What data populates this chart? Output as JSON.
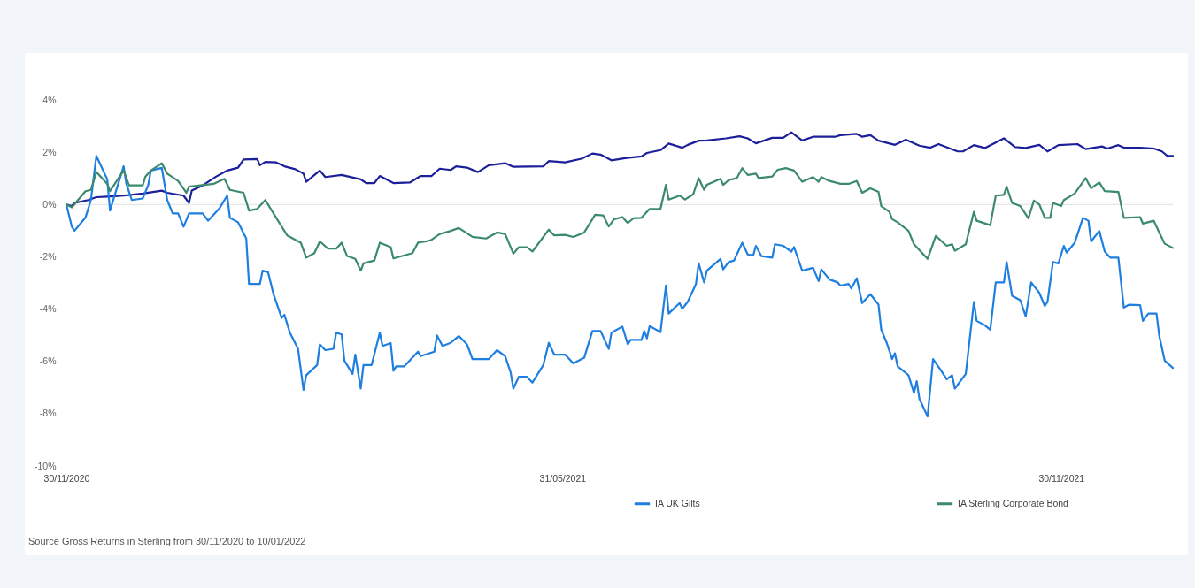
{
  "chart_data": {
    "type": "line",
    "xlim": [
      "2020-11-30",
      "2022-01-10"
    ],
    "xticks": [
      {
        "value": "2020-11-30",
        "label": "30/11/2020"
      },
      {
        "value": "2021-05-31",
        "label": "31/05/2021"
      },
      {
        "value": "2021-11-30",
        "label": "30/11/2021"
      }
    ],
    "ylim": [
      -10,
      4
    ],
    "yticks": [
      {
        "value": -10,
        "label": "-10%"
      },
      {
        "value": -8,
        "label": "-8%"
      },
      {
        "value": -6,
        "label": "-6%"
      },
      {
        "value": -4,
        "label": "-4%"
      },
      {
        "value": -2,
        "label": "-2%"
      },
      {
        "value": 0,
        "label": "0%"
      },
      {
        "value": 2,
        "label": "2%"
      },
      {
        "value": 4,
        "label": "4%"
      }
    ],
    "grid": false,
    "legend": "bottom",
    "ref_lines": [
      {
        "axis": "y",
        "value": 0,
        "color": "#e6e6e6"
      }
    ],
    "annotations": [
      "Source Gross Returns in Sterling from 30/11/2020 to 10/01/2022"
    ],
    "series": [
      {
        "color": "#1c1f9a",
        "x": [
          "2020-11-30",
          "2020-12-02",
          "2020-12-03",
          "2020-12-08",
          "2020-12-11",
          "2020-12-15",
          "2020-12-21",
          "2020-12-28",
          "2021-01-04",
          "2021-01-06",
          "2021-01-12",
          "2021-01-14",
          "2021-01-15",
          "2021-01-19",
          "2021-01-24",
          "2021-01-28",
          "2021-02-01",
          "2021-02-03",
          "2021-02-08",
          "2021-02-09",
          "2021-02-11",
          "2021-02-15",
          "2021-02-18",
          "2021-02-22",
          "2021-02-25",
          "2021-02-26",
          "2021-03-03",
          "2021-03-05",
          "2021-03-11",
          "2021-03-18",
          "2021-03-20",
          "2021-03-23",
          "2021-03-25",
          "2021-03-30",
          "2021-04-05",
          "2021-04-09",
          "2021-04-13",
          "2021-04-16",
          "2021-04-20",
          "2021-04-22",
          "2021-04-26",
          "2021-04-30",
          "2021-05-04",
          "2021-05-10",
          "2021-05-13",
          "2021-05-24",
          "2021-05-26",
          "2021-06-01",
          "2021-06-07",
          "2021-06-11",
          "2021-06-14",
          "2021-06-18",
          "2021-06-23",
          "2021-06-29",
          "2021-07-01",
          "2021-07-06",
          "2021-07-09",
          "2021-07-14",
          "2021-07-16",
          "2021-07-20",
          "2021-07-23",
          "2021-07-30",
          "2021-08-04",
          "2021-08-07",
          "2021-08-10",
          "2021-08-16",
          "2021-08-20",
          "2021-08-23",
          "2021-08-27",
          "2021-08-31",
          "2021-09-08",
          "2021-09-10",
          "2021-09-16",
          "2021-09-18",
          "2021-09-21",
          "2021-09-24",
          "2021-09-30",
          "2021-10-04",
          "2021-10-09",
          "2021-10-13",
          "2021-10-16",
          "2021-10-23",
          "2021-10-25",
          "2021-10-29",
          "2021-11-02",
          "2021-11-09",
          "2021-11-13",
          "2021-11-17",
          "2021-11-22",
          "2021-11-25",
          "2021-11-29",
          "2021-12-06",
          "2021-12-09",
          "2021-12-15",
          "2021-12-17",
          "2021-12-21",
          "2021-12-23",
          "2021-12-29",
          "2022-01-03",
          "2022-01-06",
          "2022-01-08",
          "2022-01-10"
        ],
        "values": [
          0,
          -0.06,
          0.06,
          0.17,
          0.28,
          0.3,
          0.34,
          0.42,
          0.53,
          0.45,
          0.34,
          0.06,
          0.53,
          0.73,
          1.07,
          1.3,
          1.41,
          1.72,
          1.74,
          1.5,
          1.63,
          1.61,
          1.46,
          1.35,
          1.18,
          0.87,
          1.3,
          1.05,
          1.13,
          0.96,
          0.82,
          0.82,
          1.09,
          0.82,
          0.84,
          1.09,
          1.09,
          1.37,
          1.32,
          1.46,
          1.41,
          1.24,
          1.5,
          1.58,
          1.44,
          1.46,
          1.66,
          1.61,
          1.75,
          1.95,
          1.91,
          1.69,
          1.77,
          1.84,
          1.97,
          2.08,
          2.33,
          2.17,
          2.28,
          2.44,
          2.45,
          2.53,
          2.61,
          2.53,
          2.34,
          2.55,
          2.55,
          2.76,
          2.45,
          2.59,
          2.59,
          2.65,
          2.7,
          2.59,
          2.65,
          2.44,
          2.28,
          2.48,
          2.25,
          2.17,
          2.31,
          2.03,
          2.03,
          2.27,
          2.16,
          2.53,
          2.2,
          2.16,
          2.28,
          2.03,
          2.27,
          2.31,
          2.12,
          2.22,
          2.14,
          2.27,
          2.17,
          2.17,
          2.14,
          2.03,
          1.86,
          1.86
        ]
      },
      {
        "name": "IA UK Gilts",
        "color": "#1f7fe0",
        "x": [
          "2020-11-30",
          "2020-12-02",
          "2020-12-03",
          "2020-12-07",
          "2020-12-09",
          "2020-12-11",
          "2020-12-15",
          "2020-12-16",
          "2020-12-21",
          "2020-12-22",
          "2020-12-24",
          "2020-12-28",
          "2020-12-30",
          "2020-12-31",
          "2021-01-04",
          "2021-01-06",
          "2021-01-08",
          "2021-01-10",
          "2021-01-12",
          "2021-01-14",
          "2021-01-19",
          "2021-01-21",
          "2021-01-25",
          "2021-01-28",
          "2021-01-29",
          "2021-02-01",
          "2021-02-04",
          "2021-02-05",
          "2021-02-09",
          "2021-02-10",
          "2021-02-12",
          "2021-02-14",
          "2021-02-17",
          "2021-02-18",
          "2021-02-20",
          "2021-02-23",
          "2021-02-25",
          "2021-02-26",
          "2021-03-02",
          "2021-03-03",
          "2021-03-05",
          "2021-03-08",
          "2021-03-09",
          "2021-03-11",
          "2021-03-12",
          "2021-03-15",
          "2021-03-16",
          "2021-03-18",
          "2021-03-19",
          "2021-03-22",
          "2021-03-25",
          "2021-03-26",
          "2021-03-29",
          "2021-03-30",
          "2021-03-31",
          "2021-04-03",
          "2021-04-08",
          "2021-04-09",
          "2021-04-14",
          "2021-04-15",
          "2021-04-17",
          "2021-04-20",
          "2021-04-23",
          "2021-04-26",
          "2021-04-28",
          "2021-05-04",
          "2021-05-07",
          "2021-05-10",
          "2021-05-12",
          "2021-05-13",
          "2021-05-15",
          "2021-05-18",
          "2021-05-20",
          "2021-05-24",
          "2021-05-26",
          "2021-05-28",
          "2021-06-01",
          "2021-06-04",
          "2021-06-08",
          "2021-06-11",
          "2021-06-14",
          "2021-06-17",
          "2021-06-18",
          "2021-06-22",
          "2021-06-24",
          "2021-06-25",
          "2021-06-29",
          "2021-06-30",
          "2021-07-01",
          "2021-07-02",
          "2021-07-06",
          "2021-07-08",
          "2021-07-09",
          "2021-07-13",
          "2021-07-14",
          "2021-07-16",
          "2021-07-19",
          "2021-07-20",
          "2021-07-22",
          "2021-07-23",
          "2021-07-28",
          "2021-07-29",
          "2021-07-31",
          "2021-08-02",
          "2021-08-05",
          "2021-08-07",
          "2021-08-09",
          "2021-08-10",
          "2021-08-12",
          "2021-08-16",
          "2021-08-17",
          "2021-08-20",
          "2021-08-23",
          "2021-08-24",
          "2021-08-27",
          "2021-08-31",
          "2021-09-02",
          "2021-09-03",
          "2021-09-06",
          "2021-09-09",
          "2021-09-10",
          "2021-09-13",
          "2021-09-14",
          "2021-09-16",
          "2021-09-18",
          "2021-09-21",
          "2021-09-24",
          "2021-09-25",
          "2021-09-27",
          "2021-09-29",
          "2021-09-30",
          "2021-10-01",
          "2021-10-05",
          "2021-10-07",
          "2021-10-08",
          "2021-10-09",
          "2021-10-12",
          "2021-10-14",
          "2021-10-17",
          "2021-10-19",
          "2021-10-21",
          "2021-10-22",
          "2021-10-26",
          "2021-10-29",
          "2021-10-30",
          "2021-11-02",
          "2021-11-04",
          "2021-11-06",
          "2021-11-09",
          "2021-11-10",
          "2021-11-12",
          "2021-11-15",
          "2021-11-17",
          "2021-11-19",
          "2021-11-22",
          "2021-11-24",
          "2021-11-25",
          "2021-11-27",
          "2021-11-29",
          "2021-12-01",
          "2021-12-02",
          "2021-12-05",
          "2021-12-08",
          "2021-12-10",
          "2021-12-11",
          "2021-12-14",
          "2021-12-16",
          "2021-12-18",
          "2021-12-21",
          "2021-12-23",
          "2021-12-25",
          "2021-12-29",
          "2021-12-30",
          "2022-01-01",
          "2022-01-04",
          "2022-01-05",
          "2022-01-07",
          "2022-01-10"
        ],
        "values": [
          0,
          -0.85,
          -1.0,
          -0.5,
          0.17,
          1.86,
          0.96,
          -0.23,
          1.46,
          0.79,
          0.17,
          0.23,
          0.73,
          1.3,
          1.4,
          0.17,
          -0.34,
          -0.34,
          -0.85,
          -0.34,
          -0.34,
          -0.62,
          -0.17,
          0.34,
          -0.51,
          -0.68,
          -1.3,
          -3.04,
          -3.04,
          -2.53,
          -2.59,
          -3.43,
          -4.34,
          -4.22,
          -4.9,
          -5.52,
          -7.09,
          -6.53,
          -6.14,
          -5.35,
          -5.57,
          -5.52,
          -4.9,
          -4.97,
          -5.97,
          -6.48,
          -5.74,
          -7.04,
          -6.14,
          -6.14,
          -4.9,
          -5.41,
          -5.3,
          -6.36,
          -6.19,
          -6.19,
          -5.63,
          -5.8,
          -5.63,
          -5.01,
          -5.41,
          -5.29,
          -5.03,
          -5.35,
          -5.91,
          -5.91,
          -5.57,
          -5.8,
          -6.42,
          -7.04,
          -6.59,
          -6.59,
          -6.81,
          -6.14,
          -5.29,
          -5.74,
          -5.74,
          -6.08,
          -5.86,
          -4.84,
          -4.84,
          -5.52,
          -4.9,
          -4.67,
          -5.35,
          -5.18,
          -5.18,
          -4.84,
          -5.12,
          -4.65,
          -4.88,
          -3.1,
          -4.17,
          -3.77,
          -3.99,
          -3.72,
          -3.04,
          -2.25,
          -2.98,
          -2.53,
          -2.08,
          -2.48,
          -2.2,
          -2.14,
          -1.46,
          -1.91,
          -1.95,
          -1.58,
          -1.97,
          -2.03,
          -1.52,
          -1.58,
          -1.8,
          -1.63,
          -2.53,
          -2.42,
          -2.93,
          -2.48,
          -2.87,
          -2.98,
          -3.1,
          -3.04,
          -3.21,
          -2.82,
          -3.77,
          -3.43,
          -3.83,
          -4.79,
          -5.29,
          -5.91,
          -5.69,
          -6.19,
          -6.53,
          -7.21,
          -6.76,
          -7.43,
          -8.11,
          -5.91,
          -6.36,
          -6.68,
          -6.53,
          -7.04,
          -6.48,
          -3.72,
          -4.45,
          -4.62,
          -4.79,
          -2.98,
          -2.98,
          -2.2,
          -3.49,
          -3.66,
          -4.28,
          -2.98,
          -3.38,
          -3.88,
          -3.72,
          -2.2,
          -2.25,
          -1.58,
          -1.84,
          -1.46,
          -0.51,
          -0.62,
          -1.41,
          -1.01,
          -1.8,
          -2.03,
          -2.03,
          -3.94,
          -3.83,
          -3.85,
          -4.45,
          -4.17,
          -4.17,
          -5.01,
          -5.97,
          -6.25
        ]
      },
      {
        "name": "IA Sterling Corporate Bond",
        "color": "#3b8a6e",
        "x": [
          "2020-11-30",
          "2020-12-02",
          "2020-12-07",
          "2020-12-09",
          "2020-12-11",
          "2020-12-15",
          "2020-12-16",
          "2020-12-21",
          "2020-12-23",
          "2020-12-28",
          "2020-12-29",
          "2020-12-31",
          "2021-01-04",
          "2021-01-06",
          "2021-01-10",
          "2021-01-13",
          "2021-01-14",
          "2021-01-23",
          "2021-01-27",
          "2021-01-29",
          "2021-02-03",
          "2021-02-05",
          "2021-02-08",
          "2021-02-11",
          "2021-02-15",
          "2021-02-19",
          "2021-02-24",
          "2021-02-26",
          "2021-03-01",
          "2021-03-03",
          "2021-03-06",
          "2021-03-09",
          "2021-03-11",
          "2021-03-13",
          "2021-03-16",
          "2021-03-18",
          "2021-03-19",
          "2021-03-23",
          "2021-03-25",
          "2021-03-29",
          "2021-03-30",
          "2021-04-06",
          "2021-04-08",
          "2021-04-11",
          "2021-04-13",
          "2021-04-16",
          "2021-04-20",
          "2021-04-23",
          "2021-04-28",
          "2021-05-03",
          "2021-05-07",
          "2021-05-10",
          "2021-05-13",
          "2021-05-15",
          "2021-05-18",
          "2021-05-20",
          "2021-05-26",
          "2021-05-28",
          "2021-06-01",
          "2021-06-04",
          "2021-06-08",
          "2021-06-12",
          "2021-06-15",
          "2021-06-17",
          "2021-06-19",
          "2021-06-22",
          "2021-06-24",
          "2021-06-26",
          "2021-06-29",
          "2021-07-02",
          "2021-07-06",
          "2021-07-08",
          "2021-07-09",
          "2021-07-13",
          "2021-07-15",
          "2021-07-18",
          "2021-07-20",
          "2021-07-22",
          "2021-07-23",
          "2021-07-28",
          "2021-07-29",
          "2021-07-31",
          "2021-08-03",
          "2021-08-05",
          "2021-08-07",
          "2021-08-10",
          "2021-08-11",
          "2021-08-16",
          "2021-08-18",
          "2021-08-21",
          "2021-08-24",
          "2021-08-27",
          "2021-08-31",
          "2021-09-02",
          "2021-09-03",
          "2021-09-06",
          "2021-09-10",
          "2021-09-13",
          "2021-09-16",
          "2021-09-18",
          "2021-09-21",
          "2021-09-24",
          "2021-09-25",
          "2021-09-28",
          "2021-09-29",
          "2021-10-01",
          "2021-10-05",
          "2021-10-07",
          "2021-10-12",
          "2021-10-15",
          "2021-10-19",
          "2021-10-21",
          "2021-10-22",
          "2021-10-26",
          "2021-10-29",
          "2021-10-30",
          "2021-11-04",
          "2021-11-06",
          "2021-11-09",
          "2021-11-10",
          "2021-11-12",
          "2021-11-15",
          "2021-11-18",
          "2021-11-20",
          "2021-11-22",
          "2021-11-24",
          "2021-11-26",
          "2021-11-27",
          "2021-11-30",
          "2021-12-01",
          "2021-12-05",
          "2021-12-09",
          "2021-12-11",
          "2021-12-14",
          "2021-12-16",
          "2021-12-21",
          "2021-12-23",
          "2021-12-29",
          "2021-12-30",
          "2022-01-03",
          "2022-01-05",
          "2022-01-07",
          "2022-01-10"
        ],
        "values": [
          0,
          -0.11,
          0.51,
          0.56,
          1.24,
          0.79,
          0.51,
          1.3,
          0.73,
          0.73,
          1.07,
          1.3,
          1.58,
          1.18,
          0.9,
          0.45,
          0.68,
          0.79,
          0.98,
          0.56,
          0.45,
          -0.23,
          -0.17,
          0.17,
          -0.51,
          -1.18,
          -1.46,
          -2.03,
          -1.86,
          -1.41,
          -1.69,
          -1.69,
          -1.46,
          -1.97,
          -2.08,
          -2.53,
          -2.25,
          -2.14,
          -1.46,
          -1.63,
          -2.06,
          -1.86,
          -1.46,
          -1.41,
          -1.35,
          -1.13,
          -1.01,
          -0.9,
          -1.24,
          -1.3,
          -1.07,
          -1.13,
          -1.88,
          -1.63,
          -1.63,
          -1.8,
          -0.96,
          -1.18,
          -1.16,
          -1.24,
          -1.07,
          -0.39,
          -0.42,
          -0.84,
          -0.56,
          -0.48,
          -0.71,
          -0.53,
          -0.51,
          -0.17,
          -0.17,
          0.75,
          0.19,
          0.34,
          0.19,
          0.39,
          1.01,
          0.56,
          0.75,
          0.98,
          0.75,
          0.93,
          1.01,
          1.39,
          1.13,
          1.18,
          1.01,
          1.07,
          1.33,
          1.39,
          1.3,
          0.87,
          1.05,
          0.87,
          1.05,
          0.9,
          0.79,
          0.79,
          0.9,
          0.45,
          0.62,
          0.48,
          -0.06,
          -0.28,
          -0.56,
          -0.68,
          -1.01,
          -1.52,
          -2.08,
          -1.2,
          -1.58,
          -1.52,
          -1.77,
          -1.52,
          -0.28,
          -0.62,
          -0.79,
          0.34,
          0.37,
          0.68,
          0.06,
          -0.06,
          -0.53,
          0.15,
          0,
          -0.51,
          -0.51,
          0.06,
          -0.06,
          0.17,
          0.42,
          1.01,
          0.62,
          0.84,
          0.51,
          0.48,
          -0.51,
          -0.48,
          -0.73,
          -0.62,
          -1.07,
          -1.5,
          -1.66
        ]
      }
    ]
  }
}
